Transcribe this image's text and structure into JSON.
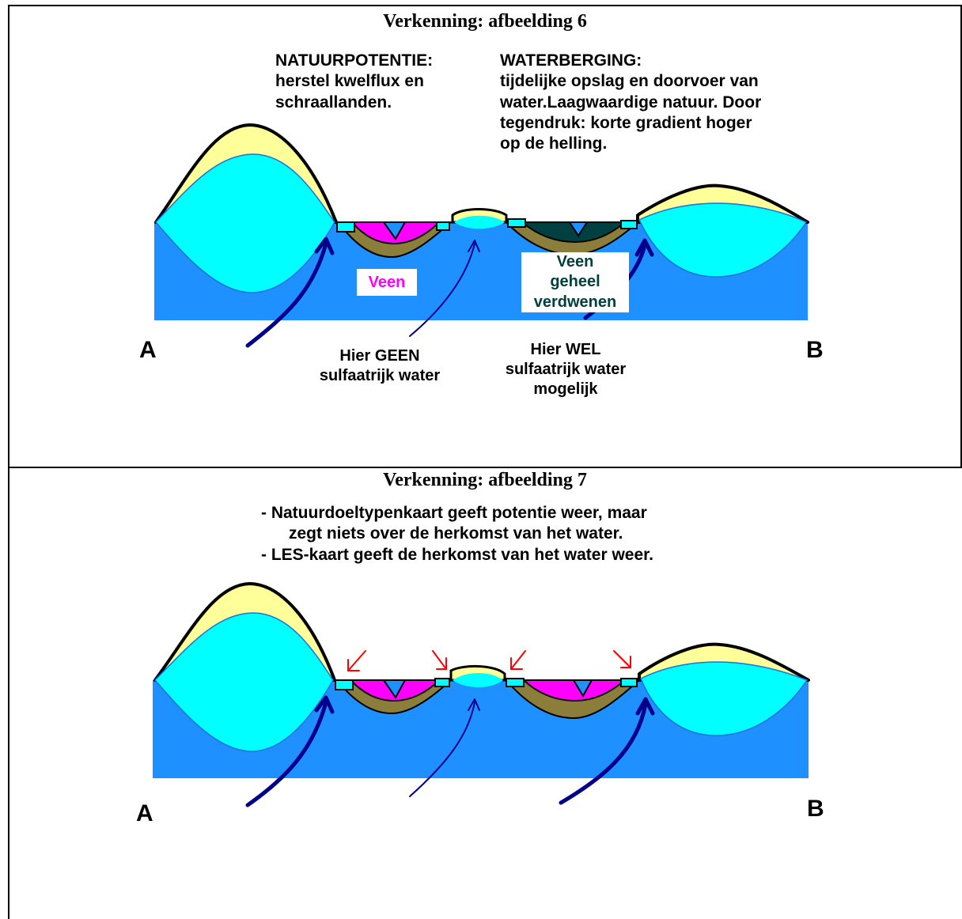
{
  "panels": [
    {
      "title": "Verkenning: afbeelding 6",
      "natuurpotentie": "NATUURPOTENTIE:\nherstel kwelflux en\nschraallanden.",
      "waterberging": "WATERBERGING:\ntijdelijke opslag en doorvoer van\nwater.Laagwaardige natuur. Door\ntegendruk: korte gradient hoger\nop de helling.",
      "veen_left": "Veen",
      "veen_right": "Veen\ngeheel\nverdwenen",
      "geen": "Hier GEEN\nsulfaatrijk water",
      "wel": "Hier WEL\nsulfaatrijk water\nmogelijk",
      "label_a": "A",
      "label_b": "B"
    },
    {
      "title": "Verkenning: afbeelding 7",
      "notes": "- Natuurdoeltypenkaart geeft potentie weer, maar\n      zegt niets over de herkomst van het water.\n- LES-kaart geeft de herkomst van het water weer.",
      "label_a": "A",
      "label_b": "B"
    }
  ],
  "colors": {
    "groundwater": "#1e90ff",
    "seepage": "#00ffff",
    "sand": "#ffff99",
    "peat": "#ff00ff",
    "peat_gone": "#004040",
    "clay": "#8b7d3a",
    "arrow_blue": "#00008b",
    "arrow_red": "#ff0000"
  }
}
